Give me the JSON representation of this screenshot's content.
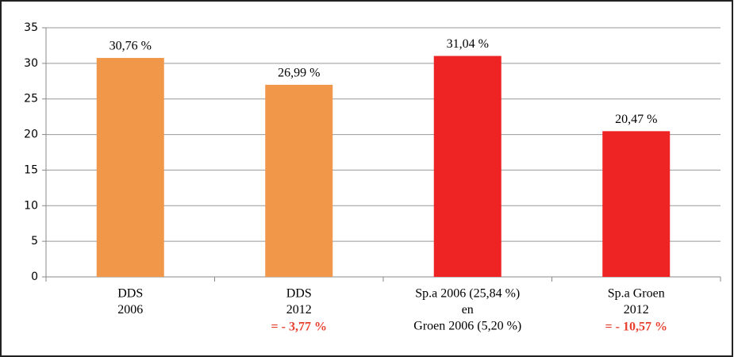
{
  "chart_data": {
    "type": "bar",
    "categories": [
      [
        "DDS",
        "2006"
      ],
      [
        "DDS",
        "2012"
      ],
      [
        "Sp.a 2006 (25,84 %)",
        "en",
        "Groen 2006 (5,20 %)"
      ],
      [
        "Sp.a Groen",
        "2012"
      ]
    ],
    "values": [
      30.76,
      26.99,
      31.04,
      20.47
    ],
    "value_labels": [
      "30,76 %",
      "26,99 %",
      "31,04 %",
      "20,47 %"
    ],
    "colors": [
      "#f0974a",
      "#f0974a",
      "#ee2424",
      "#ee2424"
    ],
    "category_notes": [
      null,
      "= - 3,77 %",
      null,
      "= - 10,57 %"
    ],
    "ylim": [
      0,
      35
    ],
    "yticks": [
      0,
      5,
      10,
      15,
      20,
      25,
      30,
      35
    ],
    "grid": true
  }
}
